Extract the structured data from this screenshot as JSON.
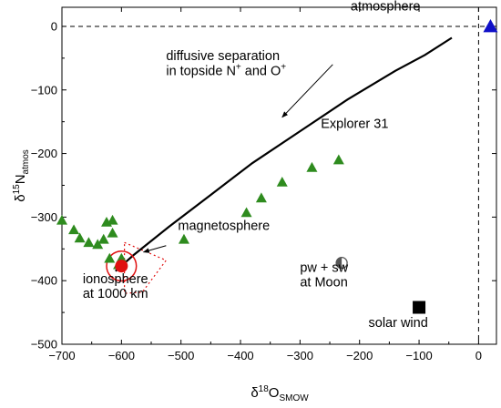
{
  "chart_data": {
    "type": "scatter",
    "xlim": [
      -700,
      30
    ],
    "ylim": [
      -500,
      30
    ],
    "x_ticks": [
      -700,
      -600,
      -500,
      -400,
      -300,
      -200,
      -100,
      0
    ],
    "y_ticks": [
      0,
      -100,
      -200,
      -300,
      -400,
      -500
    ],
    "x_tick_labels": [
      "−700",
      "−600",
      "−500",
      "−400",
      "−300",
      "−200",
      "−100",
      "0"
    ],
    "y_tick_labels": [
      "0",
      "−100",
      "−200",
      "−300",
      "−400",
      "−500"
    ],
    "xlabel": {
      "base": "δ",
      "sup": "18",
      "main": "O",
      "sub": "SMOW"
    },
    "ylabel": {
      "base": "δ",
      "sup": "15",
      "main": "N",
      "sub": "atmos"
    },
    "grid": false,
    "reference_lines": {
      "x": 0,
      "y": 0,
      "style": "dashed"
    },
    "series": [
      {
        "name": "Explorer 31",
        "marker": "triangle",
        "color": "#2e8b1e",
        "points": [
          [
            -700,
            -305
          ],
          [
            -680,
            -320
          ],
          [
            -670,
            -333
          ],
          [
            -655,
            -340
          ],
          [
            -640,
            -343
          ],
          [
            -630,
            -335
          ],
          [
            -625,
            -308
          ],
          [
            -615,
            -305
          ],
          [
            -615,
            -325
          ],
          [
            -620,
            -365
          ],
          [
            -605,
            -375
          ],
          [
            -600,
            -365
          ],
          [
            -495,
            -335
          ],
          [
            -390,
            -293
          ],
          [
            -365,
            -270
          ],
          [
            -330,
            -245
          ],
          [
            -280,
            -222
          ],
          [
            -235,
            -210
          ]
        ]
      },
      {
        "name": "atmosphere",
        "marker": "triangle",
        "color": "#1010c8",
        "points": [
          [
            20,
            0
          ]
        ]
      },
      {
        "name": "ionosphere at 1000 km",
        "marker": "circle",
        "color": "#e01010",
        "points": [
          [
            -600,
            -377
          ]
        ]
      },
      {
        "name": "pw + sw at Moon",
        "marker": "half-circle",
        "color": "#555555",
        "points": [
          [
            -230,
            -372
          ]
        ]
      },
      {
        "name": "solar wind",
        "marker": "square",
        "color": "#000000",
        "points": [
          [
            -100,
            -442
          ]
        ]
      }
    ],
    "diffusive_curve": [
      [
        -610,
        -385
      ],
      [
        -580,
        -360
      ],
      [
        -520,
        -315
      ],
      [
        -450,
        -265
      ],
      [
        -380,
        -215
      ],
      [
        -300,
        -165
      ],
      [
        -220,
        -115
      ],
      [
        -140,
        -70
      ],
      [
        -90,
        -45
      ],
      [
        -45,
        -18
      ]
    ],
    "ionosphere_ring": {
      "center": [
        -600,
        -377
      ],
      "radius_x": 25
    },
    "magnetosphere_region": [
      [
        -595,
        -340
      ],
      [
        -525,
        -368
      ],
      [
        -565,
        -418
      ],
      [
        -595,
        -420
      ]
    ],
    "annotations": {
      "atmosphere": "atmosphere",
      "diffusive_line1": "diffusive separation",
      "diffusive_line2_prefix": "in topside N",
      "diffusive_plus": "+",
      "diffusive_and": " and O",
      "explorer": "Explorer 31",
      "magnetosphere": "magnetosphere",
      "ionosphere_line1": "ionosphere",
      "ionosphere_line2": "at 1000 km",
      "pw_line1": "pw + sw",
      "pw_line2": "at Moon",
      "solar_wind": "solar wind"
    },
    "annotation_anchors": {
      "atmosphere": [
        -215,
        25
      ],
      "diffusive_line1": [
        -525,
        -53
      ],
      "diffusive_line2": [
        -525,
        -77
      ],
      "explorer": [
        -265,
        -160
      ],
      "magnetosphere": [
        -505,
        -320
      ],
      "ionosphere_line1": [
        -665,
        -404
      ],
      "ionosphere_line2": [
        -665,
        -427
      ],
      "pw_line1": [
        -300,
        -386
      ],
      "pw_line2": [
        -300,
        -409
      ],
      "solar_wind": [
        -185,
        -473
      ]
    },
    "arrows": [
      {
        "from": [
          -245,
          -60
        ],
        "to": [
          -330,
          -143
        ]
      },
      {
        "from": [
          -525,
          -345
        ],
        "to": [
          -563,
          -355
        ]
      }
    ]
  }
}
